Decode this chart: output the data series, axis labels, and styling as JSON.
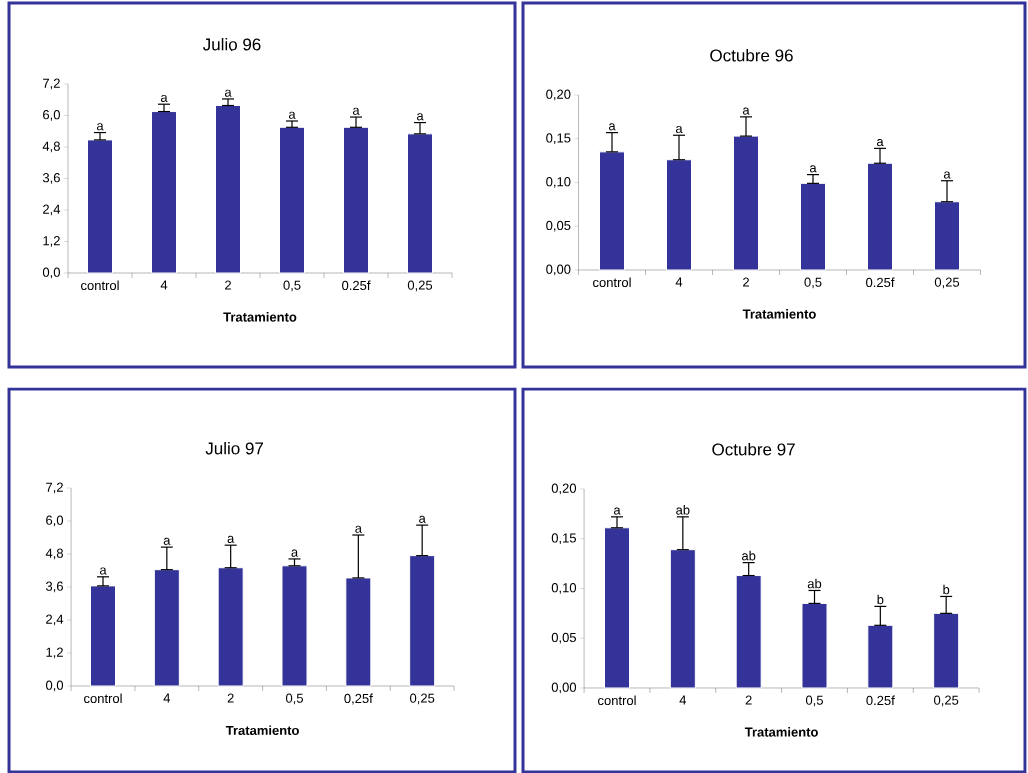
{
  "chart_data": [
    {
      "type": "bar",
      "title": "Julio 96",
      "xlabel": "Tratamiento",
      "color": "#333399",
      "categories": [
        "control",
        "4",
        "2",
        "0,5",
        "0.25f",
        "0,25"
      ],
      "values": [
        5.07,
        6.15,
        6.38,
        5.55,
        5.55,
        5.3
      ],
      "errors": [
        [
          5.07,
          5.35
        ],
        [
          6.15,
          6.43
        ],
        [
          6.38,
          6.63
        ],
        [
          5.55,
          5.79
        ],
        [
          5.55,
          5.94
        ],
        [
          5.3,
          5.73
        ]
      ],
      "ylim": [
        0,
        7.2
      ],
      "yticks": [
        {
          "value": 0,
          "label": "0,0"
        },
        {
          "value": 1.2,
          "label": "1,2"
        },
        {
          "value": 2.4,
          "label": "2,4"
        },
        {
          "value": 3.6,
          "label": "3,6"
        },
        {
          "value": 4.8,
          "label": "4,8"
        },
        {
          "value": 6.0,
          "label": "6,0"
        },
        {
          "value": 7.2,
          "label": "7,2"
        }
      ],
      "annotations": [
        {
          "text": "a",
          "x": "control",
          "y": 5.35
        },
        {
          "text": "a",
          "x": "4",
          "y": 6.43
        },
        {
          "text": "a",
          "x": "2",
          "y": 6.63
        },
        {
          "text": "a",
          "x": "0,5",
          "y": 5.79
        },
        {
          "text": "a",
          "x": "0.25f",
          "y": 5.94
        },
        {
          "text": "a",
          "x": "0,25",
          "y": 5.73
        }
      ]
    },
    {
      "type": "bar",
      "title": "Octubre 96",
      "xlabel": "Tratamiento",
      "color": "#333399",
      "categories": [
        "control",
        "4",
        "2",
        "0,5",
        "0.25f",
        "0,25"
      ],
      "values": [
        0.135,
        0.126,
        0.153,
        0.099,
        0.122,
        0.078
      ],
      "errors": [
        [
          0.135,
          0.157
        ],
        [
          0.126,
          0.154
        ],
        [
          0.153,
          0.175
        ],
        [
          0.099,
          0.109
        ],
        [
          0.122,
          0.139
        ],
        [
          0.078,
          0.102
        ]
      ],
      "ylim": [
        0,
        0.2
      ],
      "yticks": [
        {
          "value": 0,
          "label": "0,00"
        },
        {
          "value": 0.05,
          "label": "0,05"
        },
        {
          "value": 0.1,
          "label": "0,10"
        },
        {
          "value": 0.15,
          "label": "0,15"
        },
        {
          "value": 0.2,
          "label": "0,20"
        }
      ],
      "annotations": [
        {
          "text": "a",
          "x": "control",
          "y": 0.157
        },
        {
          "text": "a",
          "x": "4",
          "y": 0.154
        },
        {
          "text": "a",
          "x": "2",
          "y": 0.175
        },
        {
          "text": "a",
          "x": "0,5",
          "y": 0.109
        },
        {
          "text": "a",
          "x": "0.25f",
          "y": 0.139
        },
        {
          "text": "a",
          "x": "0,25",
          "y": 0.102
        }
      ]
    },
    {
      "type": "bar",
      "title": "Julio 97",
      "xlabel": "Tratamiento",
      "color": "#333399",
      "categories": [
        "control",
        "4",
        "2",
        "0,5",
        "0,25f",
        "0,25"
      ],
      "values": [
        3.64,
        4.23,
        4.3,
        4.37,
        3.93,
        4.74
      ],
      "errors": [
        [
          3.64,
          3.97
        ],
        [
          4.23,
          5.05
        ],
        [
          4.3,
          5.12
        ],
        [
          4.37,
          4.62
        ],
        [
          3.93,
          5.49
        ],
        [
          4.74,
          5.85
        ]
      ],
      "ylim": [
        0,
        7.2
      ],
      "yticks": [
        {
          "value": 0,
          "label": "0,0"
        },
        {
          "value": 1.2,
          "label": "1,2"
        },
        {
          "value": 2.4,
          "label": "2,4"
        },
        {
          "value": 3.6,
          "label": "3,6"
        },
        {
          "value": 4.8,
          "label": "4,8"
        },
        {
          "value": 6.0,
          "label": "6,0"
        },
        {
          "value": 7.2,
          "label": "7,2"
        }
      ],
      "annotations": [
        {
          "text": "a",
          "x": "control",
          "y": 3.97
        },
        {
          "text": "a",
          "x": "4",
          "y": 5.05
        },
        {
          "text": "a",
          "x": "2",
          "y": 5.12
        },
        {
          "text": "a",
          "x": "0,5",
          "y": 4.62
        },
        {
          "text": "a",
          "x": "0,25f",
          "y": 5.49
        },
        {
          "text": "a",
          "x": "0,25",
          "y": 5.85
        }
      ]
    },
    {
      "type": "bar",
      "title": "Octubre 97",
      "xlabel": "Tratamiento",
      "color": "#333399",
      "categories": [
        "control",
        "4",
        "2",
        "0,5",
        "0.25f",
        "0,25"
      ],
      "values": [
        0.161,
        0.139,
        0.113,
        0.085,
        0.063,
        0.075
      ],
      "errors": [
        [
          0.161,
          0.172
        ],
        [
          0.139,
          0.172
        ],
        [
          0.113,
          0.126
        ],
        [
          0.085,
          0.098
        ],
        [
          0.063,
          0.082
        ],
        [
          0.075,
          0.092
        ]
      ],
      "ylim": [
        0,
        0.2
      ],
      "yticks": [
        {
          "value": 0,
          "label": "0,00"
        },
        {
          "value": 0.05,
          "label": "0,05"
        },
        {
          "value": 0.1,
          "label": "0,10"
        },
        {
          "value": 0.15,
          "label": "0,15"
        },
        {
          "value": 0.2,
          "label": "0,20"
        }
      ],
      "annotations": [
        {
          "text": "a",
          "x": "control",
          "y": 0.172
        },
        {
          "text": "ab",
          "x": "4",
          "y": 0.172
        },
        {
          "text": "ab",
          "x": "2",
          "y": 0.126
        },
        {
          "text": "ab",
          "x": "0,5",
          "y": 0.098
        },
        {
          "text": "b",
          "x": "0.25f",
          "y": 0.082
        },
        {
          "text": "b",
          "x": "0,25",
          "y": 0.092
        }
      ]
    }
  ]
}
